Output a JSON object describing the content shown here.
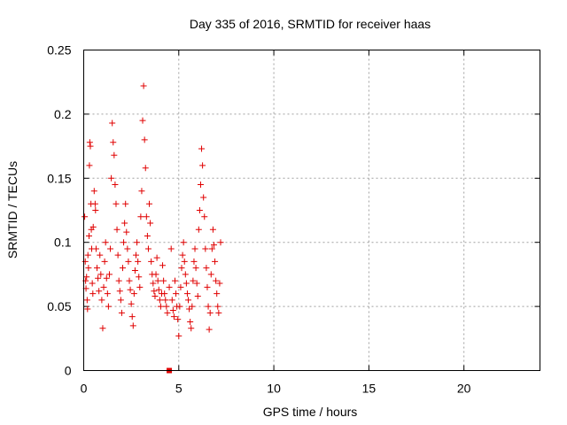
{
  "chart_data": {
    "type": "scatter",
    "title": "Day 335 of 2016, SRMTID for receiver haas",
    "xlabel": "GPS time / hours",
    "ylabel": "SRMTID / TECUs",
    "xlim": [
      0,
      24
    ],
    "ylim": [
      0,
      0.25
    ],
    "x_ticks": [
      0,
      5,
      10,
      15,
      20
    ],
    "x_tick_labels": [
      "0",
      "5",
      "10",
      "15",
      "20"
    ],
    "y_ticks": [
      0,
      0.05,
      0.1,
      0.15,
      0.2,
      0.25
    ],
    "y_tick_labels": [
      "0",
      "0.05",
      "0.1",
      "0.15",
      "0.2",
      "0.25"
    ],
    "grid": true,
    "marker_color": "#e00000",
    "series": [
      {
        "name": "SRMTID",
        "marker": "plus",
        "points": [
          [
            0.05,
            0.12
          ],
          [
            0.08,
            0.085
          ],
          [
            0.1,
            0.07
          ],
          [
            0.12,
            0.064
          ],
          [
            0.15,
            0.073
          ],
          [
            0.18,
            0.055
          ],
          [
            0.2,
            0.048
          ],
          [
            0.22,
            0.09
          ],
          [
            0.25,
            0.08
          ],
          [
            0.28,
            0.105
          ],
          [
            0.3,
            0.16
          ],
          [
            0.32,
            0.178
          ],
          [
            0.35,
            0.175
          ],
          [
            0.38,
            0.13
          ],
          [
            0.4,
            0.11
          ],
          [
            0.42,
            0.095
          ],
          [
            0.45,
            0.068
          ],
          [
            0.48,
            0.06
          ],
          [
            0.5,
            0.112
          ],
          [
            0.55,
            0.14
          ],
          [
            0.6,
            0.13
          ],
          [
            0.62,
            0.125
          ],
          [
            0.65,
            0.095
          ],
          [
            0.7,
            0.08
          ],
          [
            0.75,
            0.072
          ],
          [
            0.8,
            0.062
          ],
          [
            0.85,
            0.09
          ],
          [
            0.9,
            0.075
          ],
          [
            0.95,
            0.055
          ],
          [
            1.0,
            0.033
          ],
          [
            1.05,
            0.065
          ],
          [
            1.1,
            0.085
          ],
          [
            1.15,
            0.1
          ],
          [
            1.2,
            0.072
          ],
          [
            1.25,
            0.06
          ],
          [
            1.3,
            0.05
          ],
          [
            1.35,
            0.075
          ],
          [
            1.4,
            0.095
          ],
          [
            1.45,
            0.15
          ],
          [
            1.5,
            0.193
          ],
          [
            1.55,
            0.178
          ],
          [
            1.6,
            0.168
          ],
          [
            1.65,
            0.145
          ],
          [
            1.7,
            0.13
          ],
          [
            1.75,
            0.11
          ],
          [
            1.8,
            0.09
          ],
          [
            1.85,
            0.07
          ],
          [
            1.9,
            0.062
          ],
          [
            1.95,
            0.055
          ],
          [
            2.0,
            0.045
          ],
          [
            2.05,
            0.08
          ],
          [
            2.1,
            0.1
          ],
          [
            2.15,
            0.115
          ],
          [
            2.2,
            0.13
          ],
          [
            2.25,
            0.108
          ],
          [
            2.3,
            0.095
          ],
          [
            2.35,
            0.085
          ],
          [
            2.4,
            0.07
          ],
          [
            2.45,
            0.063
          ],
          [
            2.5,
            0.052
          ],
          [
            2.55,
            0.042
          ],
          [
            2.6,
            0.035
          ],
          [
            2.65,
            0.06
          ],
          [
            2.7,
            0.078
          ],
          [
            2.75,
            0.09
          ],
          [
            2.8,
            0.1
          ],
          [
            2.85,
            0.085
          ],
          [
            2.9,
            0.073
          ],
          [
            2.95,
            0.065
          ],
          [
            3.0,
            0.12
          ],
          [
            3.05,
            0.14
          ],
          [
            3.1,
            0.195
          ],
          [
            3.15,
            0.222
          ],
          [
            3.2,
            0.18
          ],
          [
            3.25,
            0.158
          ],
          [
            3.3,
            0.12
          ],
          [
            3.35,
            0.105
          ],
          [
            3.4,
            0.095
          ],
          [
            3.45,
            0.13
          ],
          [
            3.5,
            0.115
          ],
          [
            3.55,
            0.085
          ],
          [
            3.6,
            0.075
          ],
          [
            3.65,
            0.068
          ],
          [
            3.7,
            0.062
          ],
          [
            3.75,
            0.058
          ],
          [
            3.8,
            0.075
          ],
          [
            3.85,
            0.088
          ],
          [
            3.9,
            0.07
          ],
          [
            3.95,
            0.063
          ],
          [
            4.0,
            0.055
          ],
          [
            4.05,
            0.05
          ],
          [
            4.1,
            0.06
          ],
          [
            4.15,
            0.082
          ],
          [
            4.2,
            0.07
          ],
          [
            4.25,
            0.06
          ],
          [
            4.3,
            0.055
          ],
          [
            4.35,
            0.05
          ],
          [
            4.4,
            0.045
          ],
          [
            4.5,
            0.065
          ],
          [
            4.6,
            0.095
          ],
          [
            4.65,
            0.055
          ],
          [
            4.7,
            0.047
          ],
          [
            4.75,
            0.042
          ],
          [
            4.8,
            0.07
          ],
          [
            4.85,
            0.06
          ],
          [
            4.9,
            0.05
          ],
          [
            4.95,
            0.04
          ],
          [
            5.0,
            0.027
          ],
          [
            5.05,
            0.05
          ],
          [
            5.1,
            0.065
          ],
          [
            5.15,
            0.08
          ],
          [
            5.2,
            0.09
          ],
          [
            5.25,
            0.1
          ],
          [
            5.3,
            0.085
          ],
          [
            5.35,
            0.075
          ],
          [
            5.4,
            0.068
          ],
          [
            5.45,
            0.06
          ],
          [
            5.5,
            0.055
          ],
          [
            5.55,
            0.048
          ],
          [
            5.6,
            0.038
          ],
          [
            5.65,
            0.033
          ],
          [
            5.7,
            0.05
          ],
          [
            5.75,
            0.07
          ],
          [
            5.8,
            0.085
          ],
          [
            5.85,
            0.095
          ],
          [
            5.9,
            0.08
          ],
          [
            5.95,
            0.068
          ],
          [
            6.0,
            0.058
          ],
          [
            6.05,
            0.11
          ],
          [
            6.1,
            0.125
          ],
          [
            6.15,
            0.145
          ],
          [
            6.2,
            0.173
          ],
          [
            6.25,
            0.16
          ],
          [
            6.3,
            0.135
          ],
          [
            6.35,
            0.12
          ],
          [
            6.4,
            0.095
          ],
          [
            6.45,
            0.08
          ],
          [
            6.5,
            0.065
          ],
          [
            6.55,
            0.05
          ],
          [
            6.6,
            0.032
          ],
          [
            6.65,
            0.045
          ],
          [
            6.7,
            0.075
          ],
          [
            6.75,
            0.095
          ],
          [
            6.8,
            0.11
          ],
          [
            6.85,
            0.098
          ],
          [
            6.9,
            0.085
          ],
          [
            6.95,
            0.07
          ],
          [
            7.0,
            0.06
          ],
          [
            7.05,
            0.05
          ],
          [
            7.1,
            0.045
          ],
          [
            7.15,
            0.068
          ],
          [
            7.2,
            0.1
          ]
        ]
      },
      {
        "name": "marker",
        "marker": "square",
        "points": [
          [
            4.5,
            0.0
          ]
        ]
      }
    ]
  }
}
